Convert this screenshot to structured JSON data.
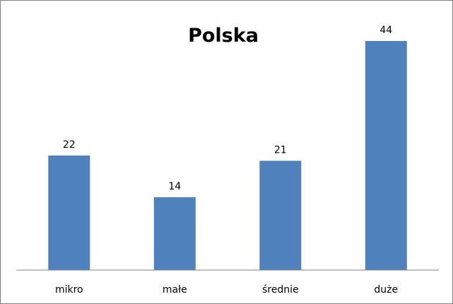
{
  "chart_data": {
    "type": "bar",
    "title": "Polska",
    "categories": [
      "mikro",
      "małe",
      "średnie",
      "duże"
    ],
    "values": [
      22,
      14,
      21,
      44
    ],
    "data_labels": [
      "22",
      "14",
      "21",
      "44"
    ],
    "xlabel": "",
    "ylabel": "",
    "ylim": [
      0,
      48
    ],
    "grid": false,
    "legend": "none",
    "bar_color": "#4F81BD",
    "axis_color": "#868686"
  }
}
